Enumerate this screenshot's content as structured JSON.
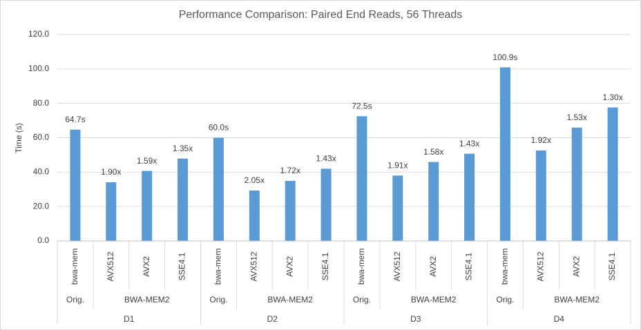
{
  "chart_data": {
    "type": "bar",
    "title": "Performance Comparison: Paired End Reads, 56 Threads",
    "y_label": "Time (s)",
    "color": "#5b9bd5",
    "grid": true,
    "ylim": [
      0,
      120
    ],
    "yticks": [
      {
        "value": 0,
        "label": "0.0"
      },
      {
        "value": 20,
        "label": "20.0"
      },
      {
        "value": 40,
        "label": "40.0"
      },
      {
        "value": 60,
        "label": "60.0"
      },
      {
        "value": 80,
        "label": "80.0"
      },
      {
        "value": 100,
        "label": "100.0"
      },
      {
        "value": 120,
        "label": "120.0"
      }
    ],
    "datasets": [
      {
        "name": "D1",
        "groups": [
          {
            "name": "Orig.",
            "categories": [
              "bwa-mem"
            ],
            "values": [
              64.7
            ],
            "labels": [
              "64.7s"
            ]
          },
          {
            "name": "BWA-MEM2",
            "categories": [
              "AVX512",
              "AVX2",
              "SSE4.1"
            ],
            "values": [
              34.1,
              40.7,
              47.9
            ],
            "labels": [
              "1.90x",
              "1.59x",
              "1.35x"
            ]
          }
        ]
      },
      {
        "name": "D2",
        "groups": [
          {
            "name": "Orig.",
            "categories": [
              "bwa-mem"
            ],
            "values": [
              60.0
            ],
            "labels": [
              "60.0s"
            ]
          },
          {
            "name": "BWA-MEM2",
            "categories": [
              "AVX512",
              "AVX2",
              "SSE4.1"
            ],
            "values": [
              29.3,
              34.9,
              42.0
            ],
            "labels": [
              "2.05x",
              "1.72x",
              "1.43x"
            ]
          }
        ]
      },
      {
        "name": "D3",
        "groups": [
          {
            "name": "Orig.",
            "categories": [
              "bwa-mem"
            ],
            "values": [
              72.5
            ],
            "labels": [
              "72.5s"
            ]
          },
          {
            "name": "BWA-MEM2",
            "categories": [
              "AVX512",
              "AVX2",
              "SSE4.1"
            ],
            "values": [
              38.0,
              45.9,
              50.7
            ],
            "labels": [
              "1.91x",
              "1.58x",
              "1.43x"
            ]
          }
        ]
      },
      {
        "name": "D4",
        "groups": [
          {
            "name": "Orig.",
            "categories": [
              "bwa-mem"
            ],
            "values": [
              100.9
            ],
            "labels": [
              "100.9s"
            ]
          },
          {
            "name": "BWA-MEM2",
            "categories": [
              "AVX512",
              "AVX2",
              "SSE4.1"
            ],
            "values": [
              52.6,
              65.9,
              77.6
            ],
            "labels": [
              "1.92x",
              "1.53x",
              "1.30x"
            ]
          }
        ]
      }
    ]
  }
}
